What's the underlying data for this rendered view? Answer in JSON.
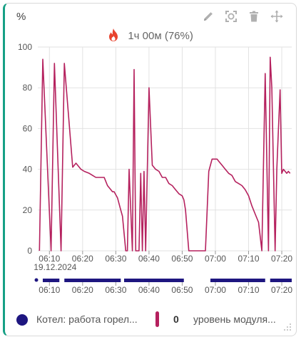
{
  "card": {
    "unit": "%",
    "burner_time": "1ч 00м (76%)",
    "icons": [
      "pencil-icon",
      "fullscreen-icon",
      "trash-icon",
      "move-icon",
      "flame-icon",
      "resize-grip-icon"
    ]
  },
  "chart_data": [
    {
      "type": "line",
      "title": "",
      "ylabel": "",
      "ylim": [
        0,
        100
      ],
      "y_ticks": [
        "0",
        "20",
        "40",
        "60",
        "80",
        "100"
      ],
      "x_ticks": [
        "06:10",
        "06:20",
        "06:30",
        "06:40",
        "06:50",
        "07:00",
        "07:10",
        "07:20"
      ],
      "x_date_label": "19.12.2024",
      "grid": true,
      "series": [
        {
          "name": "уровень модуля...",
          "color": "#b5215e",
          "x": [
            "06:07:00",
            "06:08:00",
            "06:10:30",
            "06:11:30",
            "06:13:30",
            "06:14:30",
            "06:17:00",
            "06:18:00",
            "06:19:30",
            "06:20:30",
            "06:22:00",
            "06:23:00",
            "06:24:00",
            "06:25:00",
            "06:26:00",
            "06:26:30",
            "06:27:30",
            "06:28:30",
            "06:29:00",
            "06:29:30",
            "06:30:30",
            "06:31:00",
            "06:31:30",
            "06:32:00",
            "06:33:00",
            "06:33:30",
            "06:34:00",
            "06:35:00",
            "06:35:30",
            "06:36:00",
            "06:37:00",
            "06:37:30",
            "06:38:00",
            "06:38:30",
            "06:39:00",
            "06:40:00",
            "06:41:00",
            "06:42:00",
            "06:43:00",
            "06:44:00",
            "06:45:00",
            "06:46:00",
            "06:47:00",
            "06:48:00",
            "06:49:00",
            "06:50:00",
            "06:50:30",
            "06:51:00",
            "06:52:00",
            "06:53:00",
            "06:54:00",
            "06:55:00",
            "06:56:00",
            "06:57:00",
            "06:58:00",
            "06:59:00",
            "07:00:30",
            "07:01:00",
            "07:02:00",
            "07:03:00",
            "07:04:00",
            "07:05:00",
            "07:06:00",
            "07:07:00",
            "07:08:00",
            "07:09:00",
            "07:10:00",
            "07:11:00",
            "07:12:00",
            "07:13:00",
            "07:14:00",
            "07:15:00",
            "07:16:00",
            "07:16:30",
            "07:17:00",
            "07:18:00",
            "07:18:30",
            "07:19:00",
            "07:19:30",
            "07:20:00",
            "07:20:30",
            "07:21:30",
            "07:22:00",
            "07:22:30"
          ],
          "y": [
            0,
            94,
            0,
            92,
            0,
            92,
            41,
            43,
            40,
            39,
            38,
            37,
            36,
            36,
            36,
            36,
            32,
            30,
            29,
            29,
            26,
            23,
            20,
            17,
            0,
            0,
            40,
            0,
            89,
            0,
            0,
            38,
            0,
            39,
            0,
            80,
            42,
            40,
            39,
            36,
            36,
            33,
            32,
            30,
            28,
            27,
            25,
            20,
            0,
            0,
            0,
            0,
            0,
            0,
            39,
            45,
            45,
            44,
            42,
            40,
            38,
            37,
            34,
            33,
            32,
            30,
            27,
            22,
            18,
            14,
            0,
            87,
            0,
            95,
            80,
            0,
            40,
            60,
            79,
            38,
            40,
            38,
            39,
            38
          ]
        },
        {
          "name": "Котел: работа горел...",
          "color": "#1e1680",
          "type": "timeline",
          "segments": [
            [
              "06:06:30",
              "06:06:30"
            ],
            [
              "06:08:00",
              "06:13:00"
            ],
            [
              "06:14:30",
              "06:31:30"
            ],
            [
              "06:32:30",
              "06:50:30"
            ],
            [
              "06:58:30",
              "07:15:00"
            ],
            [
              "07:16:30",
              "07:23:00"
            ]
          ]
        }
      ]
    }
  ],
  "legend": {
    "series1_label": "Котел: работа горел...",
    "series2_value": "0",
    "series2_label": "уровень модуля..."
  }
}
